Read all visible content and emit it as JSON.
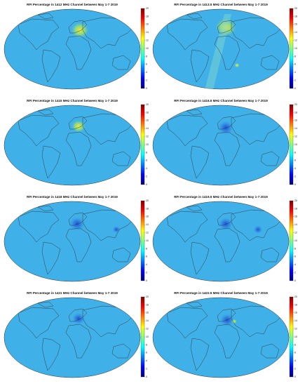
{
  "panels": [
    {
      "title": "RFI Percentage in 1412 MHz Channel between May 1-7 2019",
      "colorbar": {
        "lim": [
          0,
          20
        ],
        "ticks": [
          0,
          2,
          4,
          6,
          8,
          10,
          12,
          14,
          16,
          18,
          20
        ]
      }
    },
    {
      "title": "RFI Percentage in 1413.5 MHz Channel between May 1-7 2019",
      "colorbar": {
        "lim": [
          0,
          20
        ],
        "ticks": [
          0,
          2,
          4,
          6,
          8,
          10,
          12,
          14,
          16,
          18,
          20
        ]
      }
    },
    {
      "title": "RFI Percentage in 1415 MHz Channel between May 1-7 2019",
      "colorbar": {
        "lim": [
          0,
          20
        ],
        "ticks": [
          0,
          2,
          4,
          6,
          8,
          10,
          12,
          14,
          16,
          18,
          20
        ]
      }
    },
    {
      "title": "RFI Percentage in 1416.5 MHz Channel between May 1-7 2019",
      "colorbar": {
        "lim": [
          0,
          20
        ],
        "ticks": [
          0,
          2,
          4,
          6,
          8,
          10,
          12,
          14,
          16,
          18,
          20
        ]
      }
    },
    {
      "title": "RFI Percentage in 1418 MHz Channel between May 1-7 2019",
      "colorbar": {
        "lim": [
          0,
          20
        ],
        "ticks": [
          0,
          2,
          4,
          6,
          8,
          10,
          12,
          14,
          16,
          18,
          20
        ]
      }
    },
    {
      "title": "RFI Percentage in 1419.5 MHz Channel between May 1-7 2019",
      "colorbar": {
        "lim": [
          0,
          20
        ],
        "ticks": [
          0,
          2,
          4,
          6,
          8,
          10,
          12,
          14,
          16,
          18,
          20
        ]
      }
    },
    {
      "title": "RFI Percentage in 1421 MHz Channel between May 1-7 2019",
      "colorbar": {
        "lim": [
          0,
          20
        ],
        "ticks": [
          0,
          2,
          4,
          6,
          8,
          10,
          12,
          14,
          16,
          18,
          20
        ]
      }
    },
    {
      "title": "RFI Percentage in 1422.5 MHz Channel between May 1-7 2019",
      "colorbar": {
        "lim": [
          0,
          20
        ],
        "ticks": [
          0,
          2,
          4,
          6,
          8,
          10,
          12,
          14,
          16,
          18,
          20
        ]
      }
    }
  ]
}
